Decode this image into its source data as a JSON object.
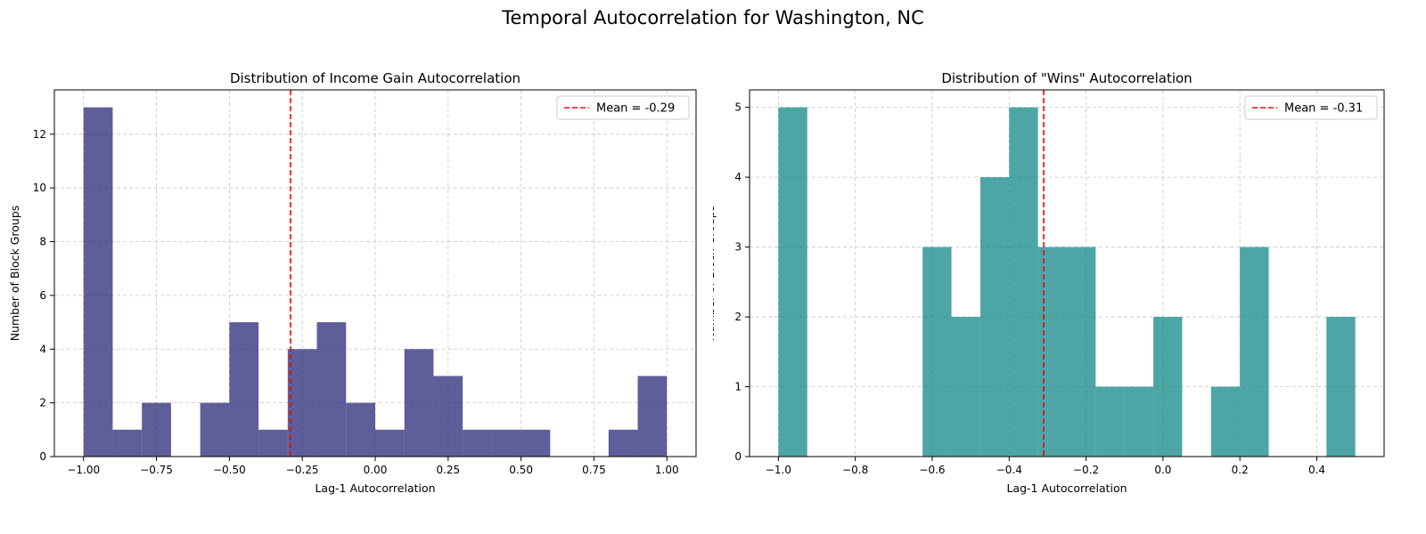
{
  "figure": {
    "suptitle": "Temporal Autocorrelation for Washington, NC"
  },
  "chart_data": [
    {
      "type": "bar",
      "title": "Distribution of Income Gain Autocorrelation",
      "xlabel": "Lag-1 Autocorrelation",
      "ylabel": "Number of Block Groups",
      "color": "#191970",
      "xlim": [
        -1.1,
        1.1
      ],
      "ylim": [
        0,
        13.65
      ],
      "xticks": [
        -1.0,
        -0.75,
        -0.5,
        -0.25,
        0.0,
        0.25,
        0.5,
        0.75,
        1.0
      ],
      "xtick_labels": [
        "−1.00",
        "−0.75",
        "−0.50",
        "−0.25",
        "0.00",
        "0.25",
        "0.50",
        "0.75",
        "1.00"
      ],
      "yticks": [
        0,
        2,
        4,
        6,
        8,
        10,
        12
      ],
      "ytick_labels": [
        "0",
        "2",
        "4",
        "6",
        "8",
        "10",
        "12"
      ],
      "bin_edges": [
        -1.0,
        -0.9,
        -0.8,
        -0.7,
        -0.6,
        -0.5,
        -0.4,
        -0.3,
        -0.2,
        -0.1,
        0.0,
        0.1,
        0.2,
        0.3,
        0.4,
        0.5,
        0.6,
        0.7,
        0.8,
        0.9,
        1.0
      ],
      "counts": [
        13,
        1,
        2,
        0,
        2,
        5,
        1,
        4,
        5,
        2,
        1,
        4,
        3,
        1,
        1,
        1,
        0,
        0,
        1,
        3
      ],
      "mean": -0.29,
      "mean_label": "Mean = -0.29",
      "mean_color": "#ff0000",
      "legend_position": "top-right",
      "grid": true
    },
    {
      "type": "bar",
      "title": "Distribution of \"Wins\" Autocorrelation",
      "xlabel": "Lag-1 Autocorrelation",
      "ylabel": "Number of Block Groups",
      "color": "#008080",
      "xlim": [
        -1.075,
        0.575
      ],
      "ylim": [
        0,
        5.25
      ],
      "xticks": [
        -1.0,
        -0.8,
        -0.6,
        -0.4,
        -0.2,
        0.0,
        0.2,
        0.4
      ],
      "xtick_labels": [
        "−1.0",
        "−0.8",
        "−0.6",
        "−0.4",
        "−0.2",
        "0.0",
        "0.2",
        "0.4"
      ],
      "yticks": [
        0,
        1,
        2,
        3,
        4,
        5
      ],
      "ytick_labels": [
        "0",
        "1",
        "2",
        "3",
        "4",
        "5"
      ],
      "bin_edges": [
        -1.0,
        -0.925,
        -0.85,
        -0.775,
        -0.7,
        -0.625,
        -0.55,
        -0.475,
        -0.4,
        -0.325,
        -0.25,
        -0.175,
        -0.1,
        -0.025,
        0.05,
        0.125,
        0.2,
        0.275,
        0.35,
        0.425,
        0.5
      ],
      "counts": [
        5,
        0,
        0,
        0,
        0,
        3,
        2,
        4,
        5,
        3,
        3,
        1,
        1,
        2,
        0,
        1,
        3,
        0,
        0,
        2
      ],
      "mean": -0.31,
      "mean_label": "Mean = -0.31",
      "mean_color": "#ff0000",
      "legend_position": "top-right",
      "grid": true
    }
  ]
}
